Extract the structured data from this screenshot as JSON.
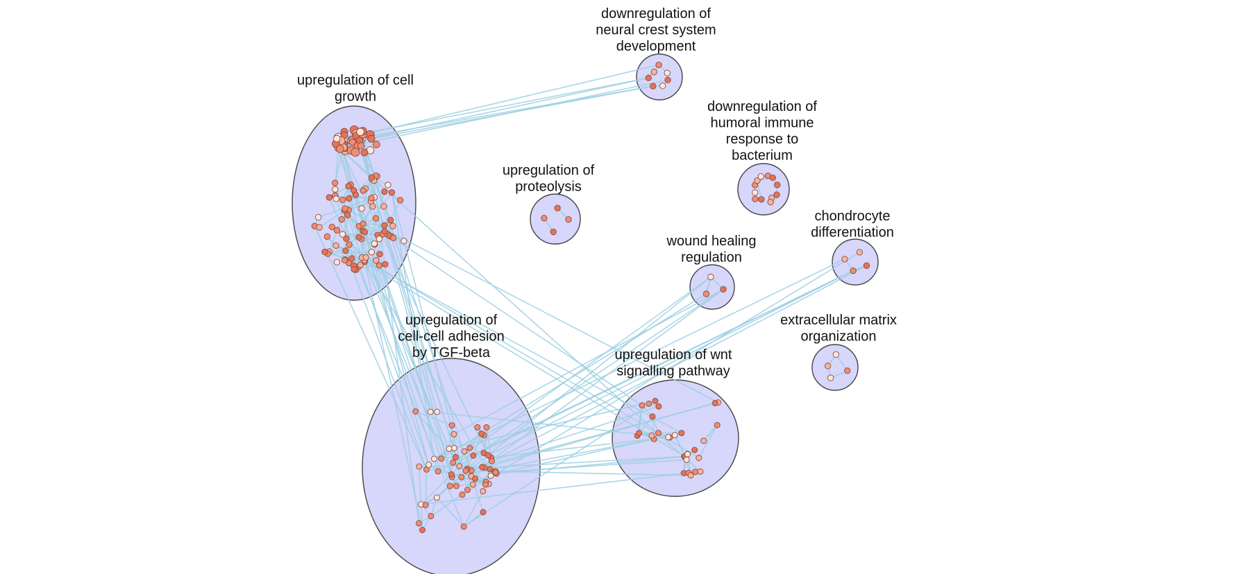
{
  "colors": {
    "background": "#ffffff",
    "cluster_fill": "#d7d6fb",
    "cluster_stroke": "#444444",
    "edge": "#9ccfe2",
    "node_dark": "#e5735a",
    "node_mid": "#f08c72",
    "node_light": "#f6b39f",
    "node_pale": "#fde7df"
  },
  "clusters": [
    {
      "id": "cell-growth",
      "label_lines": [
        "upregulation of cell",
        "growth"
      ],
      "node_count": 130
    },
    {
      "id": "neural-crest",
      "label_lines": [
        "downregulation of",
        "neural crest system",
        "development"
      ],
      "node_count": 7
    },
    {
      "id": "humoral-immune",
      "label_lines": [
        "downregulation of",
        "humoral immune",
        "response to",
        "bacterium"
      ],
      "node_count": 12
    },
    {
      "id": "proteolysis",
      "label_lines": [
        "upregulation of",
        "proteolysis"
      ],
      "node_count": 4
    },
    {
      "id": "chondrocyte",
      "label_lines": [
        "chondrocyte",
        "differentiation"
      ],
      "node_count": 4
    },
    {
      "id": "wound-healing",
      "label_lines": [
        "wound healing",
        "regulation"
      ],
      "node_count": 3
    },
    {
      "id": "cell-adhesion",
      "label_lines": [
        "upregulation of",
        "cell-cell adhesion",
        "by TGF-beta"
      ],
      "node_count": 60
    },
    {
      "id": "extracellular-matrix",
      "label_lines": [
        "extracellular matrix",
        "organization"
      ],
      "node_count": 4
    },
    {
      "id": "wnt-signalling",
      "label_lines": [
        "upregulation of wnt",
        "signalling pathway"
      ],
      "node_count": 30
    }
  ],
  "inter_cluster_links": [
    {
      "from": "cell-growth",
      "to": "neural-crest"
    },
    {
      "from": "cell-growth",
      "to": "cell-adhesion"
    },
    {
      "from": "cell-growth",
      "to": "wnt-signalling"
    },
    {
      "from": "cell-adhesion",
      "to": "wnt-signalling"
    },
    {
      "from": "cell-adhesion",
      "to": "wound-healing"
    },
    {
      "from": "cell-adhesion",
      "to": "chondrocyte"
    }
  ]
}
